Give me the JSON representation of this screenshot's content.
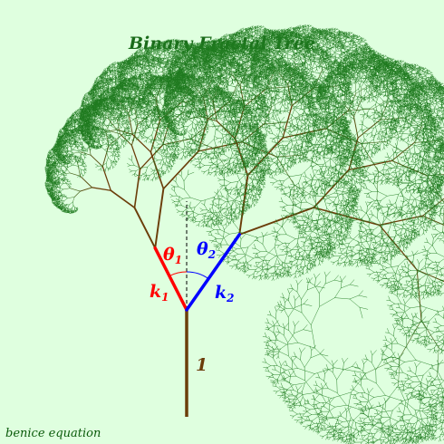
{
  "title": "Binary Fractal Tree",
  "credit": "benice equation",
  "trunk_label": "1",
  "left_angle_label": {
    "sym": "θ",
    "sub": "1"
  },
  "right_angle_label": {
    "sym": "θ",
    "sub": "2"
  },
  "left_ratio_label": {
    "sym": "k",
    "sub": "1"
  },
  "right_ratio_label": {
    "sym": "k",
    "sub": "2"
  },
  "tree": {
    "trunk_length": 1,
    "k1": 0.65,
    "k2": 0.86,
    "theta1_deg": 27,
    "theta2_deg": 35,
    "depth": 15
  },
  "colors": {
    "background": "#dfffdf",
    "title": "#1a6b1a",
    "trunk": "#6b3d0a",
    "leaves": "#1f7a1f",
    "left_branch": "#ff0000",
    "right_branch": "#0000ff",
    "trunk_label": "#6b3d0a",
    "credit": "#0a5a0a",
    "guide": "#000000"
  }
}
